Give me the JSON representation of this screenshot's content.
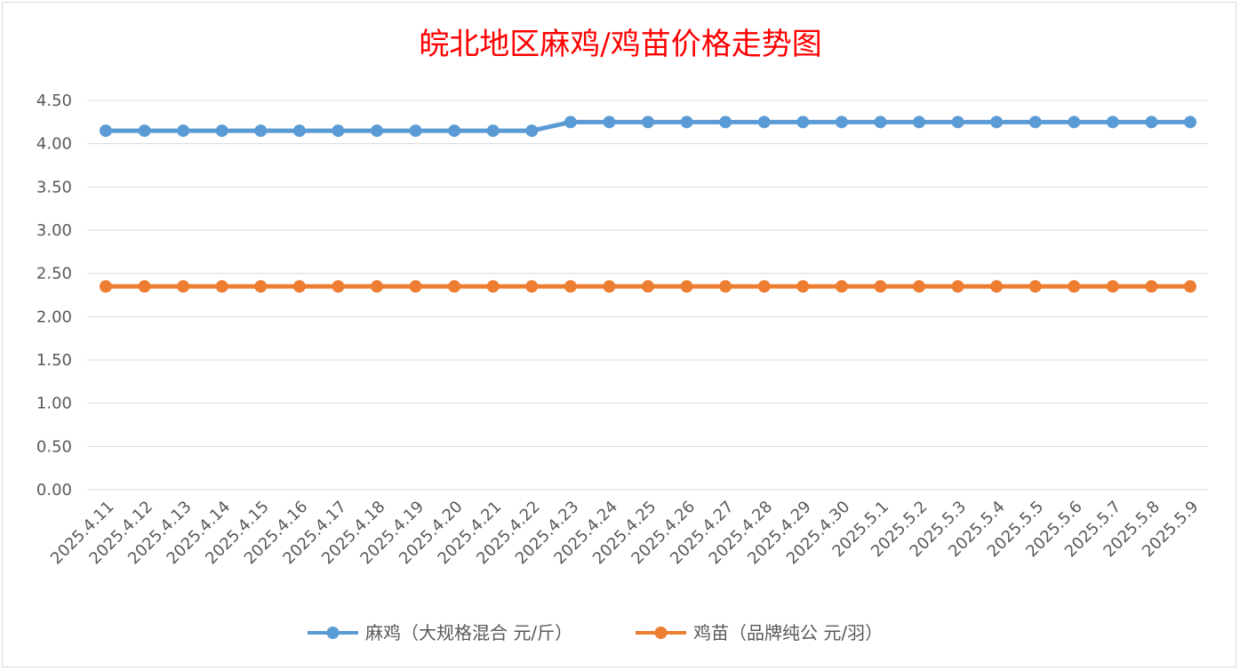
{
  "chart_data": {
    "type": "line",
    "title": "皖北地区麻鸡/鸡苗价格走势图",
    "categories": [
      "2025.4.11",
      "2025.4.12",
      "2025.4.13",
      "2025.4.14",
      "2025.4.15",
      "2025.4.16",
      "2025.4.17",
      "2025.4.18",
      "2025.4.19",
      "2025.4.20",
      "2025.4.21",
      "2025.4.22",
      "2025.4.23",
      "2025.4.24",
      "2025.4.25",
      "2025.4.26",
      "2025.4.27",
      "2025.4.28",
      "2025.4.29",
      "2025.4.30",
      "2025.5.1",
      "2025.5.2",
      "2025.5.3",
      "2025.5.4",
      "2025.5.5",
      "2025.5.6",
      "2025.5.7",
      "2025.5.8",
      "2025.5.9"
    ],
    "series": [
      {
        "name": "麻鸡（大规格混合 元/斤）",
        "color": "#5b9bd5",
        "values": [
          4.15,
          4.15,
          4.15,
          4.15,
          4.15,
          4.15,
          4.15,
          4.15,
          4.15,
          4.15,
          4.15,
          4.15,
          4.25,
          4.25,
          4.25,
          4.25,
          4.25,
          4.25,
          4.25,
          4.25,
          4.25,
          4.25,
          4.25,
          4.25,
          4.25,
          4.25,
          4.25,
          4.25,
          4.25
        ]
      },
      {
        "name": "鸡苗（品牌纯公 元/羽）",
        "color": "#ed7d31",
        "values": [
          2.35,
          2.35,
          2.35,
          2.35,
          2.35,
          2.35,
          2.35,
          2.35,
          2.35,
          2.35,
          2.35,
          2.35,
          2.35,
          2.35,
          2.35,
          2.35,
          2.35,
          2.35,
          2.35,
          2.35,
          2.35,
          2.35,
          2.35,
          2.35,
          2.35,
          2.35,
          2.35,
          2.35,
          2.35
        ]
      }
    ],
    "yticks": [
      "0.00",
      "0.50",
      "1.00",
      "1.50",
      "2.00",
      "2.50",
      "3.00",
      "3.50",
      "4.00",
      "4.50"
    ],
    "ylim": [
      0,
      4.5
    ],
    "grid": true,
    "legend_position": "bottom"
  }
}
